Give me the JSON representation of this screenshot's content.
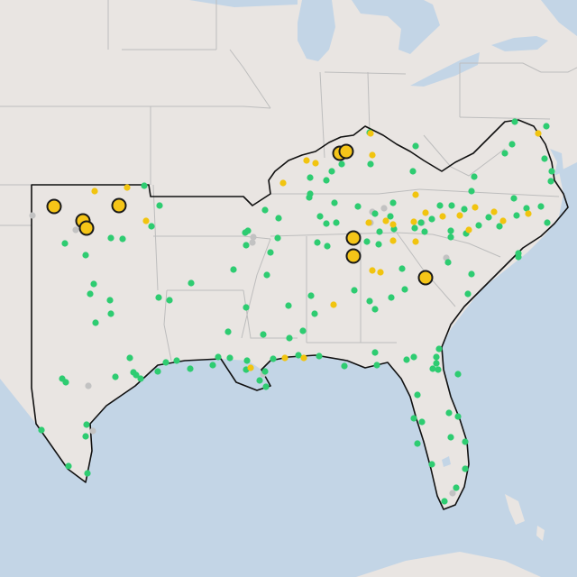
{
  "map": {
    "colors": {
      "land": "#e9e5e2",
      "water": "#c3d5e6",
      "state_border": "#bdbdbd",
      "region_outline": "#111111",
      "marker_green": "#2ecc71",
      "marker_yellow": "#f1c40f",
      "marker_gray": "#c2c2c2",
      "highlight_fill": "#f5c518",
      "highlight_stroke": "#1a1a1a"
    },
    "marker_status": [
      "green",
      "yellow",
      "gray",
      "highlight"
    ]
  }
}
